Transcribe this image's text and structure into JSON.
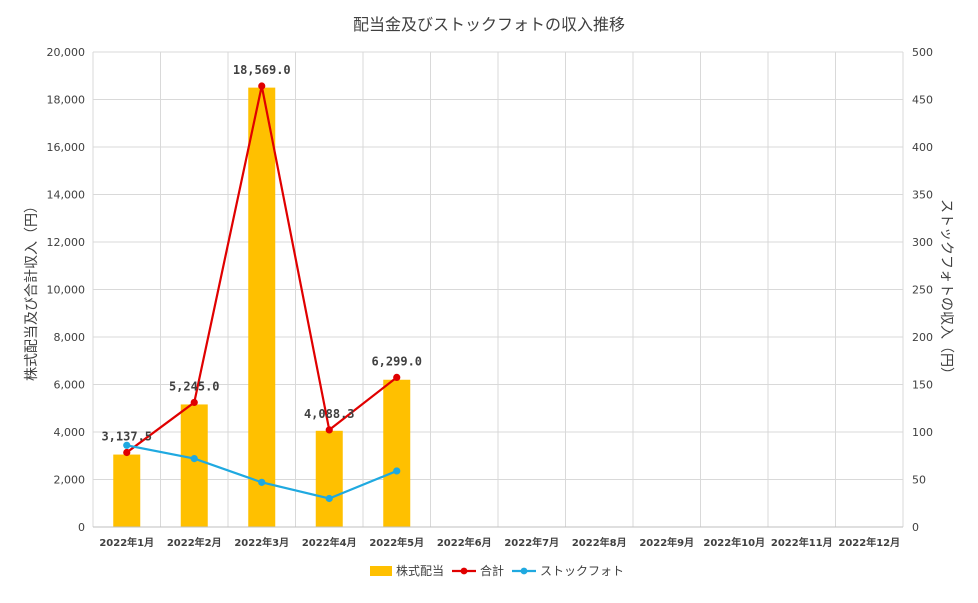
{
  "chart_data": {
    "type": "bar+line",
    "title": "配当金及びストックフォトの収入推移",
    "ylabel_left": "株式配当及び合計収入（円）",
    "ylabel_right": "ストックフォトの収入（円）",
    "ylim_left": [
      0,
      20000
    ],
    "ylim_right": [
      0,
      500
    ],
    "yticks_left": [
      "0",
      "2,000",
      "4,000",
      "6,000",
      "8,000",
      "10,000",
      "12,000",
      "14,000",
      "16,000",
      "18,000",
      "20,000"
    ],
    "yticks_right": [
      "0",
      "50",
      "100",
      "150",
      "200",
      "250",
      "300",
      "350",
      "400",
      "450",
      "500"
    ],
    "categories": [
      "2022年1月",
      "2022年2月",
      "2022年3月",
      "2022年4月",
      "2022年5月",
      "2022年6月",
      "2022年7月",
      "2022年8月",
      "2022年9月",
      "2022年10月",
      "2022年11月",
      "2022年12月"
    ],
    "grid": true,
    "legend_position": "bottom",
    "series": [
      {
        "name": "株式配当",
        "type": "bar",
        "axis": "left",
        "color": "#FFC000",
        "values": [
          3050,
          5160,
          18500,
          4050,
          6200,
          null,
          null,
          null,
          null,
          null,
          null,
          null
        ]
      },
      {
        "name": "合計",
        "type": "line",
        "axis": "left",
        "color": "#E00000",
        "values": [
          3137.5,
          5245.0,
          18569.0,
          4088.3,
          6299.0,
          null,
          null,
          null,
          null,
          null,
          null,
          null
        ],
        "data_labels": [
          "3,137.5",
          "5,245.0",
          "18,569.0",
          "4,088.3",
          "6,299.0"
        ]
      },
      {
        "name": "ストックフォト",
        "type": "line",
        "axis": "right",
        "color": "#1FA9E0",
        "values": [
          86,
          72,
          47,
          30,
          59,
          null,
          null,
          null,
          null,
          null,
          null,
          null
        ]
      }
    ]
  }
}
